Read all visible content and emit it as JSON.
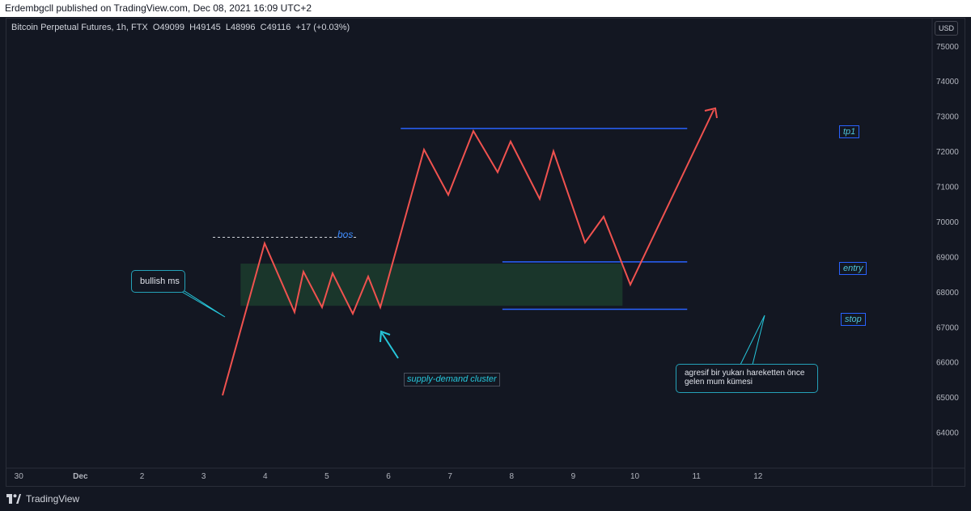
{
  "header": {
    "published_text": "Erdembgcll published on TradingView.com, Dec 08, 2021 16:09 UTC+2"
  },
  "legend": {
    "symbol": "Bitcoin Perpetual Futures, 1h, FTX",
    "open_label": "O",
    "open": "49099",
    "high_label": "H",
    "high": "49145",
    "low_label": "L",
    "low": "48996",
    "close_label": "C",
    "close": "49116",
    "change": "+17 (+0.03%)"
  },
  "currency": "USD",
  "footer": {
    "brand": "TradingView"
  },
  "colors": {
    "background": "#131722",
    "path": "#f0524f",
    "levels": "#2962ff",
    "zone": "#1c3a2c",
    "cyan": "#26c6da"
  },
  "chart_data": {
    "type": "line",
    "x_ticks": [
      "30",
      "Dec",
      "2",
      "3",
      "4",
      "5",
      "6",
      "7",
      "8",
      "9",
      "10",
      "11",
      "12"
    ],
    "y_ticks": [
      64000,
      65000,
      66000,
      67000,
      68000,
      69000,
      70000,
      71000,
      72000,
      73000,
      74000,
      75000
    ],
    "ylim": [
      63000,
      75800
    ],
    "xlim": [
      28.8,
      43.8
    ],
    "grid": false,
    "price_path": {
      "x": [
        31.6,
        32.15,
        32.6,
        32.75,
        33.0,
        33.2,
        33.35,
        33.6,
        33.85,
        34.1,
        34.25,
        34.6,
        34.9,
        35.25,
        35.5,
        35.8,
        36.25,
        36.45,
        36.65,
        36.85,
        37.2,
        37.4,
        37.6,
        37.85,
        38.2,
        38.45,
        38.75,
        39.3,
        39.8,
        40.2
      ],
      "y": [
        65400,
        69500,
        67700,
        68750,
        67800,
        68700,
        67600,
        68650,
        67800,
        69600,
        72050,
        70800,
        72600,
        71450,
        72350,
        70700,
        72050,
        70900,
        69550,
        70250,
        68400,
        69300,
        70350,
        71500,
        73100,
        72800,
        72900,
        73200,
        73250,
        73000
      ]
    },
    "levels": [
      {
        "name": "tp1",
        "label": "tp1",
        "y": 72650,
        "x_start": 35.2,
        "x_end": 39.85
      },
      {
        "name": "entry",
        "label": "entry",
        "y": 68850,
        "x_start": 36.85,
        "x_end": 39.85
      },
      {
        "name": "stop",
        "label": "stop",
        "y": 67500,
        "x_start": 36.85,
        "x_end": 39.85
      }
    ],
    "zone": {
      "x_start": 32.6,
      "x_end": 38.8,
      "y_low": 67600,
      "y_high": 68800
    },
    "bos": {
      "label": "bos",
      "y": 69550,
      "x_start": 32.15,
      "x_end": 34.5
    },
    "annotations": {
      "bullish_ms": "bullish ms",
      "cluster": "supply-demand cluster",
      "note": "agresif bir yukarı hareketten önce gelen mum kümesi"
    }
  }
}
